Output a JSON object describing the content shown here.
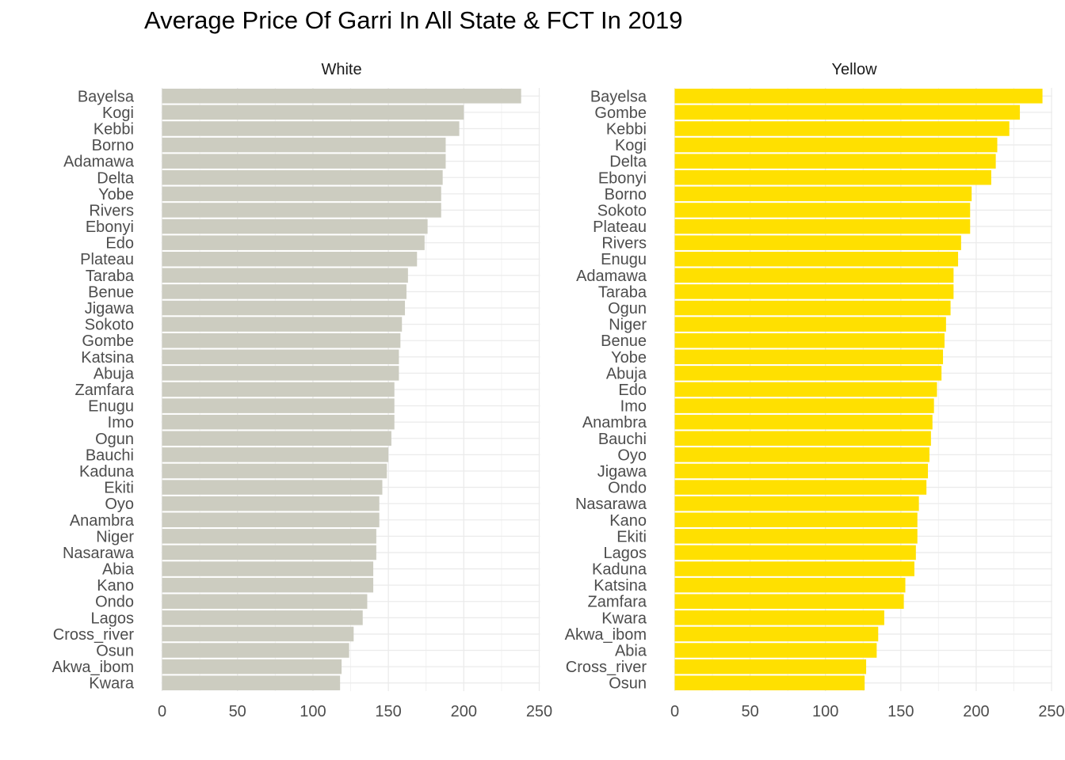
{
  "chart_data": {
    "type": "bar",
    "orientation": "horizontal",
    "title": "Average Price Of Garri In All State & FCT In 2019",
    "xlabel": "",
    "ylabel": "",
    "xlim": [
      0,
      250
    ],
    "xticks": [
      0,
      50,
      100,
      150,
      200,
      250
    ],
    "grid": true,
    "facets": [
      {
        "name": "White",
        "color": "#CCCCC0",
        "categories": [
          "Bayelsa",
          "Kogi",
          "Kebbi",
          "Borno",
          "Adamawa",
          "Delta",
          "Yobe",
          "Rivers",
          "Ebonyi",
          "Edo",
          "Plateau",
          "Taraba",
          "Benue",
          "Jigawa",
          "Sokoto",
          "Gombe",
          "Katsina",
          "Abuja",
          "Zamfara",
          "Enugu",
          "Imo",
          "Ogun",
          "Bauchi",
          "Kaduna",
          "Ekiti",
          "Oyo",
          "Anambra",
          "Niger",
          "Nasarawa",
          "Abia",
          "Kano",
          "Ondo",
          "Lagos",
          "Cross_river",
          "Osun",
          "Akwa_ibom",
          "Kwara"
        ],
        "values": [
          238,
          200,
          197,
          188,
          188,
          186,
          185,
          185,
          176,
          174,
          169,
          163,
          162,
          161,
          159,
          158,
          157,
          157,
          154,
          154,
          154,
          152,
          150,
          149,
          146,
          144,
          144,
          142,
          142,
          140,
          140,
          136,
          133,
          127,
          124,
          119,
          118
        ]
      },
      {
        "name": "Yellow",
        "color": "#FFE000",
        "categories": [
          "Bayelsa",
          "Gombe",
          "Kebbi",
          "Kogi",
          "Delta",
          "Ebonyi",
          "Borno",
          "Sokoto",
          "Plateau",
          "Rivers",
          "Enugu",
          "Adamawa",
          "Taraba",
          "Ogun",
          "Niger",
          "Benue",
          "Yobe",
          "Abuja",
          "Edo",
          "Imo",
          "Anambra",
          "Bauchi",
          "Oyo",
          "Jigawa",
          "Ondo",
          "Nasarawa",
          "Kano",
          "Ekiti",
          "Lagos",
          "Kaduna",
          "Katsina",
          "Zamfara",
          "Kwara",
          "Akwa_ibom",
          "Abia",
          "Cross_river",
          "Osun"
        ],
        "values": [
          244,
          229,
          222,
          214,
          213,
          210,
          197,
          196,
          196,
          190,
          188,
          185,
          185,
          183,
          180,
          179,
          178,
          177,
          174,
          172,
          171,
          170,
          169,
          168,
          167,
          162,
          161,
          161,
          160,
          159,
          153,
          152,
          139,
          135,
          134,
          127,
          126
        ]
      }
    ]
  }
}
